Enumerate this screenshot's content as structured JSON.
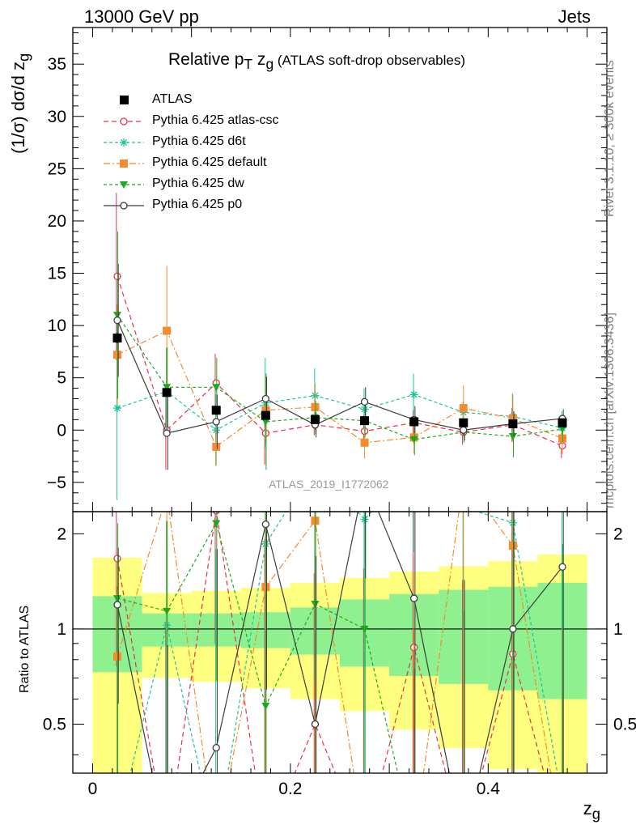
{
  "header": {
    "energy": "13000 GeV pp",
    "category": "Jets"
  },
  "side_labels": {
    "top": "Rivet 3.1.10, ≥ 300k events",
    "bottom": "mcplots.cern.ch [arXiv:1306.3436]"
  },
  "chart_data": {
    "type": "scatter",
    "title_parts": {
      "main": "Relative p",
      "sub_T": "T",
      "mid": " z",
      "sub_g": "g",
      "tail": " (ATLAS soft-drop observables)"
    },
    "ylabel": "(1/σ) dσ/d z",
    "ylabel_sub": "g",
    "ratio_ylabel": "Ratio to ATLAS",
    "xlabel": "z",
    "xlabel_sub": "g",
    "watermark": "ATLAS_2019_I1772062",
    "xlim": [
      -0.02,
      0.52
    ],
    "ylim": [
      -7.8,
      38.5
    ],
    "ratio_ylim": [
      0.35,
      2.35
    ],
    "x_ticks": [
      "0",
      "0.2",
      "0.4"
    ],
    "y_ticks": [
      "−5",
      "0",
      "5",
      "10",
      "15",
      "20",
      "25",
      "30",
      "35"
    ],
    "ratio_ticks": [
      "0.5",
      "1",
      "2"
    ],
    "x": [
      0.025,
      0.075,
      0.125,
      0.175,
      0.225,
      0.275,
      0.325,
      0.375,
      0.425,
      0.475
    ],
    "data": {
      "name": "ATLAS",
      "y": [
        8.8,
        3.6,
        1.9,
        1.4,
        1.0,
        0.9,
        0.8,
        0.7,
        0.6,
        0.7
      ],
      "err": [
        0.5,
        0.3,
        0.2,
        0.2,
        0.2,
        0.2,
        0.2,
        0.2,
        0.2,
        0.2
      ]
    },
    "band_inner": [
      0.27,
      0.12,
      0.12,
      0.13,
      0.17,
      0.24,
      0.29,
      0.33,
      0.36,
      0.4
    ],
    "band_outer": [
      0.68,
      0.3,
      0.32,
      0.35,
      0.4,
      0.45,
      0.52,
      0.58,
      0.64,
      0.72
    ],
    "series": [
      {
        "name": "Pythia 6.425 atlas-csc",
        "color": "#e8304a",
        "marker": "circle-open",
        "dash": "6,4",
        "y": [
          14.7,
          0.0,
          4.5,
          -0.3,
          0.5,
          -0.1,
          0.7,
          -0.2,
          0.5,
          -1.5
        ],
        "err": [
          8.0,
          3.8,
          2.8,
          3.0,
          1.0,
          1.5,
          1.2,
          1.2,
          1.6,
          1.2
        ]
      },
      {
        "name": "Pythia 6.425 d6t",
        "color": "#19c49b",
        "marker": "star",
        "dash": "4,3",
        "y": [
          2.1,
          3.7,
          0.0,
          2.6,
          3.3,
          2.0,
          3.4,
          1.7,
          1.3,
          0.2
        ],
        "err": [
          8.8,
          4.2,
          3.4,
          4.3,
          2.6,
          2.0,
          2.0,
          1.0,
          2.2,
          1.6
        ]
      },
      {
        "name": "Pythia 6.425 default",
        "color": "#f58b2e",
        "marker": "square",
        "dash": "8,3,2,3",
        "y": [
          7.2,
          9.5,
          -1.6,
          1.9,
          2.2,
          -1.2,
          -0.7,
          2.1,
          1.1,
          -0.8
        ],
        "err": [
          4.8,
          6.2,
          1.8,
          3.2,
          2.2,
          1.5,
          1.5,
          2.2,
          2.3,
          1.5
        ]
      },
      {
        "name": "Pythia 6.425 dw",
        "color": "#1fa81f",
        "marker": "triangle-down",
        "dash": "4,3",
        "y": [
          11.0,
          4.1,
          4.1,
          0.8,
          1.2,
          0.9,
          -0.9,
          -0.2,
          -0.6,
          0.1
        ],
        "err": [
          8.0,
          3.8,
          2.8,
          4.6,
          1.6,
          1.6,
          1.5,
          1.0,
          2.0,
          1.2
        ]
      },
      {
        "name": "Pythia 6.425 p0",
        "color": "#3c3c3c",
        "marker": "circle-open",
        "dash": "",
        "y": [
          10.5,
          -0.3,
          0.8,
          3.0,
          0.5,
          2.7,
          1.0,
          0.0,
          0.6,
          1.1
        ],
        "err": [
          5.4,
          3.5,
          2.6,
          2.1,
          1.2,
          1.4,
          1.3,
          1.0,
          1.2,
          0.9
        ]
      }
    ]
  }
}
